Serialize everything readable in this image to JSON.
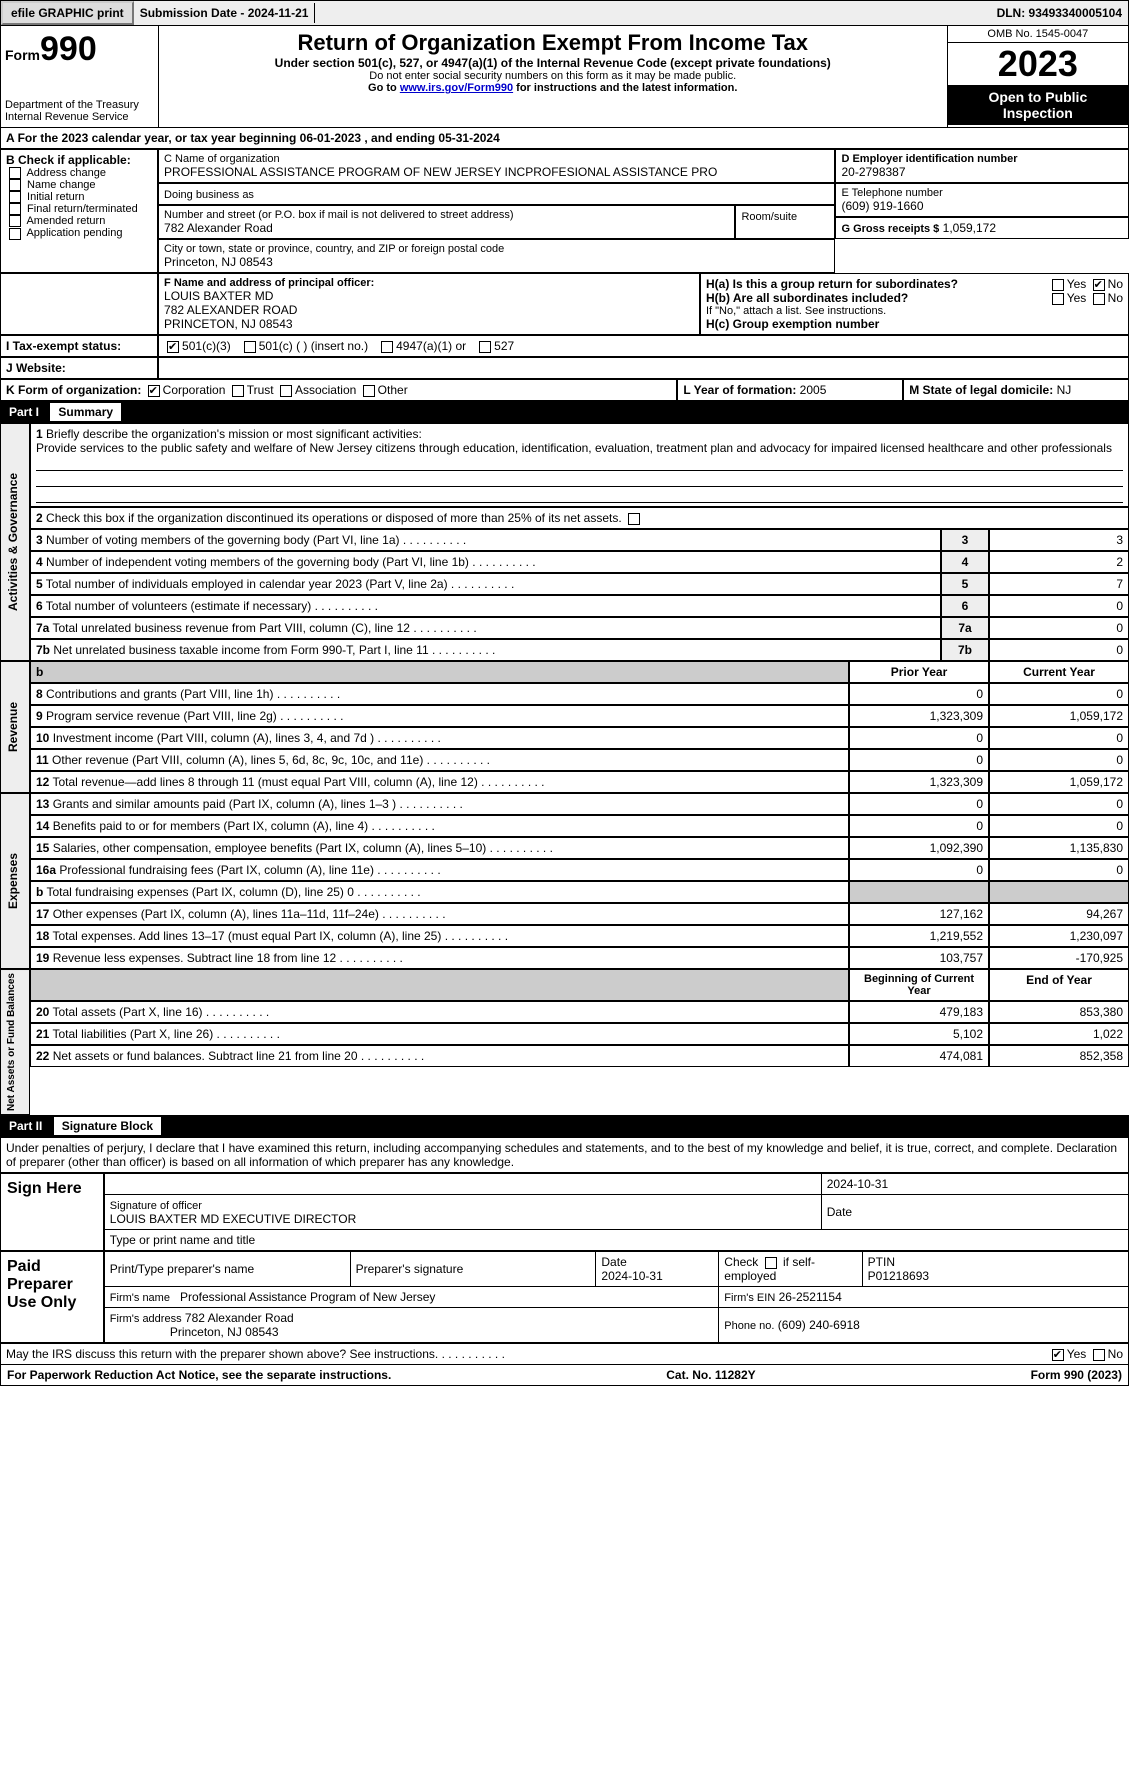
{
  "topbar": {
    "efile": "efile GRAPHIC print",
    "submission": "Submission Date - 2024-11-21",
    "dln": "DLN: 93493340005104"
  },
  "header": {
    "form_small": "Form",
    "form_num": "990",
    "title": "Return of Organization Exempt From Income Tax",
    "subtitle": "Under section 501(c), 527, or 4947(a)(1) of the Internal Revenue Code (except private foundations)",
    "warn": "Do not enter social security numbers on this form as it may be made public.",
    "goto_pre": "Go to ",
    "goto_link": "www.irs.gov/Form990",
    "goto_post": " for instructions and the latest information.",
    "dept": "Department of the Treasury",
    "irs": "Internal Revenue Service",
    "omb": "OMB No. 1545-0047",
    "year": "2023",
    "open": "Open to Public Inspection"
  },
  "A": "For the 2023 calendar year, or tax year beginning 06-01-2023    , and ending 05-31-2024",
  "B": {
    "label": "B Check if applicable:",
    "opts": [
      "Address change",
      "Name change",
      "Initial return",
      "Final return/terminated",
      "Amended return",
      "Application pending"
    ]
  },
  "C": {
    "name_lbl": "C Name of organization",
    "name": "PROFESSIONAL ASSISTANCE PROGRAM OF NEW JERSEY INCPROFESIONAL ASSISTANCE PRO",
    "dba_lbl": "Doing business as",
    "addr_lbl": "Number and street (or P.O. box if mail is not delivered to street address)",
    "room_lbl": "Room/suite",
    "addr": "782 Alexander Road",
    "city_lbl": "City or town, state or province, country, and ZIP or foreign postal code",
    "city": "Princeton, NJ  08543"
  },
  "D": {
    "lbl": "D Employer identification number",
    "val": "20-2798387"
  },
  "E": {
    "lbl": "E Telephone number",
    "val": "(609) 919-1660"
  },
  "G": {
    "lbl": "G Gross receipts $",
    "val": "1,059,172"
  },
  "F": {
    "lbl": "F  Name and address of principal officer:",
    "l1": "LOUIS BAXTER MD",
    "l2": "782 ALEXANDER ROAD",
    "l3": "PRINCETON, NJ  08543"
  },
  "H": {
    "a": "H(a)  Is this a group return for subordinates?",
    "b": "H(b)  Are all subordinates included?",
    "note": "If \"No,\" attach a list. See instructions.",
    "c": "H(c)  Group exemption number",
    "yes": "Yes",
    "no": "No"
  },
  "I": {
    "lbl": "Tax-exempt status:",
    "o1": "501(c)(3)",
    "o2": "501(c) (  ) (insert no.)",
    "o3": "4947(a)(1) or",
    "o4": "527"
  },
  "J": {
    "lbl": "Website:"
  },
  "K": {
    "lbl": "K Form of organization:",
    "o1": "Corporation",
    "o2": "Trust",
    "o3": "Association",
    "o4": "Other"
  },
  "L": {
    "lbl": "L Year of formation:",
    "val": "2005"
  },
  "M": {
    "lbl": "M State of legal domicile:",
    "val": "NJ"
  },
  "part1": {
    "hdr": "Part I",
    "title": "Summary"
  },
  "summary": {
    "l1_lbl": "Briefly describe the organization's mission or most significant activities:",
    "l1_txt": "Provide services to the public safety and welfare of New Jersey citizens through education, identification, evaluation, treatment plan and advocacy for impaired licensed healthcare and other professionals",
    "l2": "Check this box  if the organization discontinued its operations or disposed of more than 25% of its net assets.",
    "l3": "Number of voting members of the governing body (Part VI, line 1a)",
    "l4": "Number of independent voting members of the governing body (Part VI, line 1b)",
    "l5": "Total number of individuals employed in calendar year 2023 (Part V, line 2a)",
    "l6": "Total number of volunteers (estimate if necessary)",
    "l7a": "Total unrelated business revenue from Part VIII, column (C), line 12",
    "l7b": "Net unrelated business taxable income from Form 990-T, Part I, line 11",
    "vals": {
      "3": "3",
      "4": "2",
      "5": "7",
      "6": "0",
      "7a": "0",
      "7b": "0"
    },
    "vlabel_ag": "Activities & Governance"
  },
  "revenue": {
    "vlabel": "Revenue",
    "hdr_prior": "Prior Year",
    "hdr_curr": "Current Year",
    "rows": [
      {
        "n": "8",
        "t": "Contributions and grants (Part VIII, line 1h)",
        "p": "0",
        "c": "0"
      },
      {
        "n": "9",
        "t": "Program service revenue (Part VIII, line 2g)",
        "p": "1,323,309",
        "c": "1,059,172"
      },
      {
        "n": "10",
        "t": "Investment income (Part VIII, column (A), lines 3, 4, and 7d )",
        "p": "0",
        "c": "0"
      },
      {
        "n": "11",
        "t": "Other revenue (Part VIII, column (A), lines 5, 6d, 8c, 9c, 10c, and 11e)",
        "p": "0",
        "c": "0"
      },
      {
        "n": "12",
        "t": "Total revenue—add lines 8 through 11 (must equal Part VIII, column (A), line 12)",
        "p": "1,323,309",
        "c": "1,059,172"
      }
    ]
  },
  "expenses": {
    "vlabel": "Expenses",
    "rows": [
      {
        "n": "13",
        "t": "Grants and similar amounts paid (Part IX, column (A), lines 1–3 )",
        "p": "0",
        "c": "0"
      },
      {
        "n": "14",
        "t": "Benefits paid to or for members (Part IX, column (A), line 4)",
        "p": "0",
        "c": "0"
      },
      {
        "n": "15",
        "t": "Salaries, other compensation, employee benefits (Part IX, column (A), lines 5–10)",
        "p": "1,092,390",
        "c": "1,135,830"
      },
      {
        "n": "16a",
        "t": "Professional fundraising fees (Part IX, column (A), line 11e)",
        "p": "0",
        "c": "0"
      },
      {
        "n": "b",
        "t": "Total fundraising expenses (Part IX, column (D), line 25) 0",
        "p": "",
        "c": "",
        "grey": true
      },
      {
        "n": "17",
        "t": "Other expenses (Part IX, column (A), lines 11a–11d, 11f–24e)",
        "p": "127,162",
        "c": "94,267"
      },
      {
        "n": "18",
        "t": "Total expenses. Add lines 13–17 (must equal Part IX, column (A), line 25)",
        "p": "1,219,552",
        "c": "1,230,097"
      },
      {
        "n": "19",
        "t": "Revenue less expenses. Subtract line 18 from line 12",
        "p": "103,757",
        "c": "-170,925"
      }
    ]
  },
  "netassets": {
    "vlabel": "Net Assets or Fund Balances",
    "hdr_beg": "Beginning of Current Year",
    "hdr_end": "End of Year",
    "rows": [
      {
        "n": "20",
        "t": "Total assets (Part X, line 16)",
        "p": "479,183",
        "c": "853,380"
      },
      {
        "n": "21",
        "t": "Total liabilities (Part X, line 26)",
        "p": "5,102",
        "c": "1,022"
      },
      {
        "n": "22",
        "t": "Net assets or fund balances. Subtract line 21 from line 20",
        "p": "474,081",
        "c": "852,358"
      }
    ]
  },
  "part2": {
    "hdr": "Part II",
    "title": "Signature Block"
  },
  "penalty": "Under penalties of perjury, I declare that I have examined this return, including accompanying schedules and statements, and to the best of my knowledge and belief, it is true, correct, and complete. Declaration of preparer (other than officer) is based on all information of which preparer has any knowledge.",
  "sign": {
    "here": "Sign Here",
    "date1": "2024-10-31",
    "sig_lbl": "Signature of officer",
    "date_lbl": "Date",
    "name": "LOUIS BAXTER MD  EXECUTIVE DIRECTOR",
    "type_lbl": "Type or print name and title"
  },
  "paid": {
    "lbl": "Paid Preparer Use Only",
    "c1": "Print/Type preparer's name",
    "c2": "Preparer's signature",
    "c3": "Date",
    "c3v": "2024-10-31",
    "c4a": "Check",
    "c4b": "if self-employed",
    "c5": "PTIN",
    "c5v": "P01218693",
    "firm_lbl": "Firm's name",
    "firm": "Professional Assistance Program of New Jersey",
    "ein_lbl": "Firm's EIN",
    "ein": "26-2521154",
    "addr_lbl": "Firm's address",
    "addr1": "782 Alexander Road",
    "addr2": "Princeton, NJ  08543",
    "phone_lbl": "Phone no.",
    "phone": "(609) 240-6918"
  },
  "may": "May the IRS discuss this return with the preparer shown above? See instructions.",
  "footer": {
    "l": "For Paperwork Reduction Act Notice, see the separate instructions.",
    "m": "Cat. No. 11282Y",
    "r": "Form 990 (2023)"
  }
}
